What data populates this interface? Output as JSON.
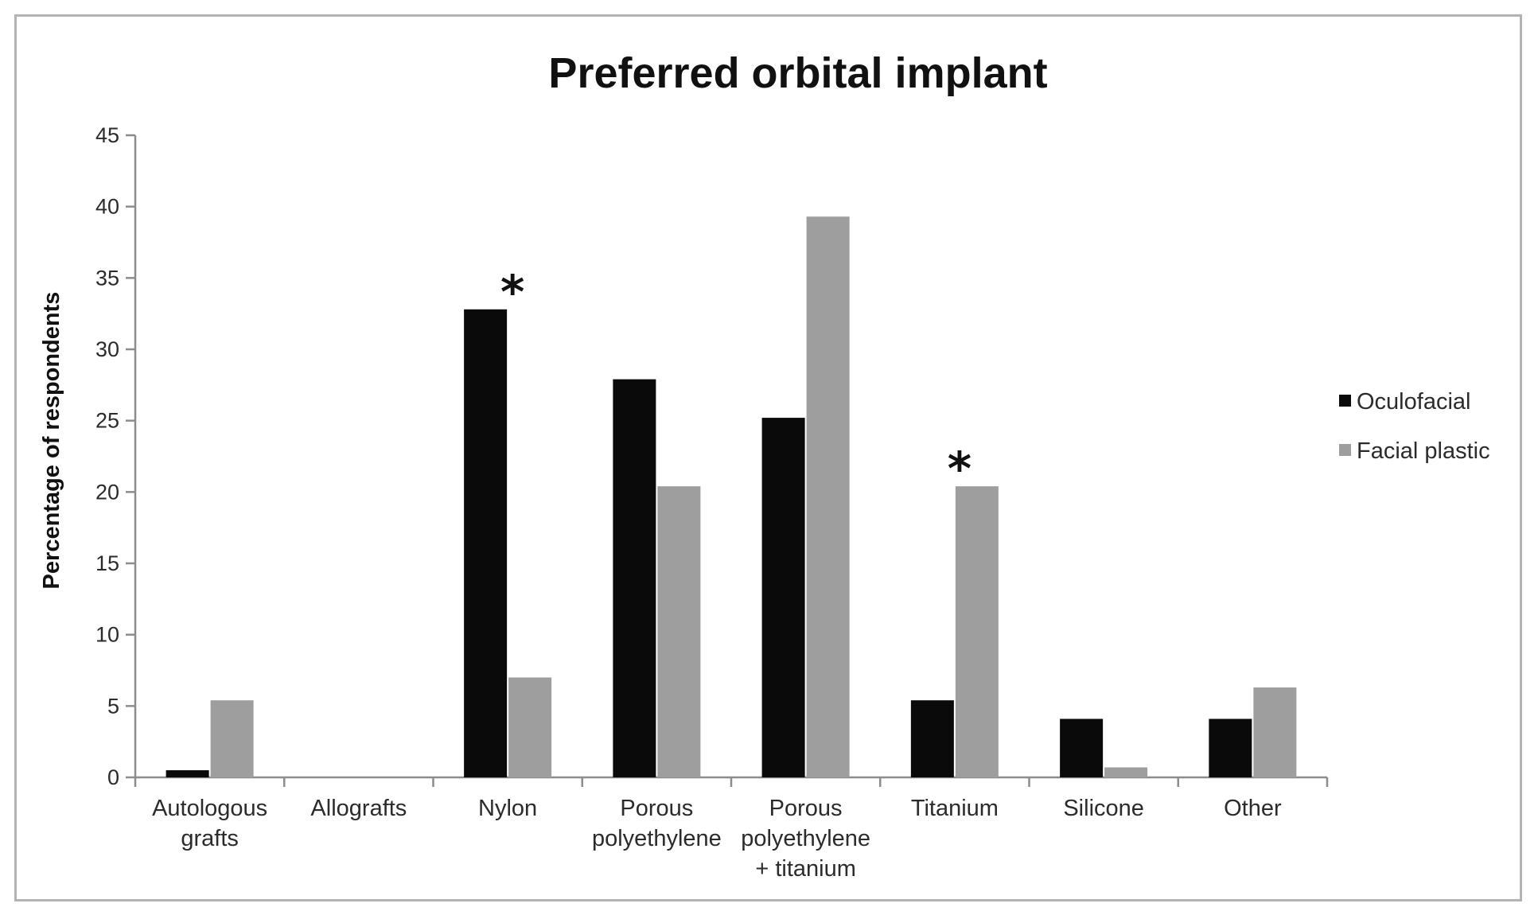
{
  "chart_data": {
    "type": "bar",
    "title": "Preferred orbital implant",
    "xlabel": "",
    "ylabel": "Percentage of respondents",
    "ylim": [
      0,
      45
    ],
    "yticks": [
      0,
      5,
      10,
      15,
      20,
      25,
      30,
      35,
      40,
      45
    ],
    "grid": false,
    "legend_position": "right",
    "categories": [
      [
        "Autologous",
        "grafts"
      ],
      [
        "Allografts"
      ],
      [
        "Nylon"
      ],
      [
        "Porous",
        "polyethylene"
      ],
      [
        "Porous",
        "polyethylene",
        "+ titanium"
      ],
      [
        "Titanium"
      ],
      [
        "Silicone"
      ],
      [
        "Other"
      ]
    ],
    "series": [
      {
        "name": "Oculofacial",
        "color": "#0a0a0a",
        "values": [
          0.5,
          0,
          32.8,
          27.9,
          25.2,
          5.4,
          4.1,
          4.1
        ]
      },
      {
        "name": "Facial plastic",
        "color": "#9e9e9e",
        "values": [
          5.4,
          0,
          7.0,
          20.4,
          39.3,
          20.4,
          0.7,
          6.3
        ]
      }
    ],
    "annotations": [
      {
        "category_index": 2,
        "text": "*"
      },
      {
        "category_index": 5,
        "text": "*"
      }
    ]
  }
}
